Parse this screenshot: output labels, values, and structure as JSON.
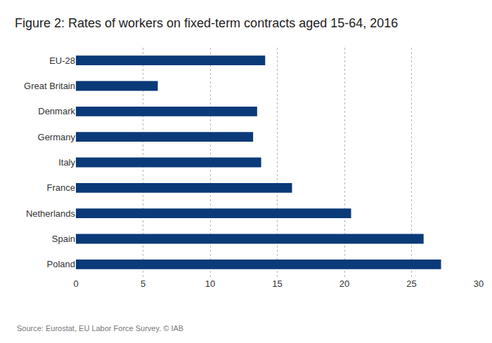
{
  "chart_data": {
    "type": "bar",
    "title": "Figure 2: Rates of workers on fixed-term contracts aged 15-64, 2016",
    "orientation": "horizontal",
    "categories": [
      "EU-28",
      "Great Britain",
      "Denmark",
      "Germany",
      "Italy",
      "France",
      "Netherlands",
      "Spain",
      "Poland"
    ],
    "values": [
      14.1,
      6.1,
      13.5,
      13.2,
      13.8,
      16.1,
      20.5,
      25.9,
      27.2
    ],
    "color": "#0b3a78",
    "xlim": [
      0,
      30
    ],
    "xticks": [
      0,
      5,
      10,
      15,
      20,
      25,
      30
    ],
    "grid": true,
    "annotations": [
      "Source: Eurostat, EU Labor Force Survey. © IAB"
    ]
  }
}
